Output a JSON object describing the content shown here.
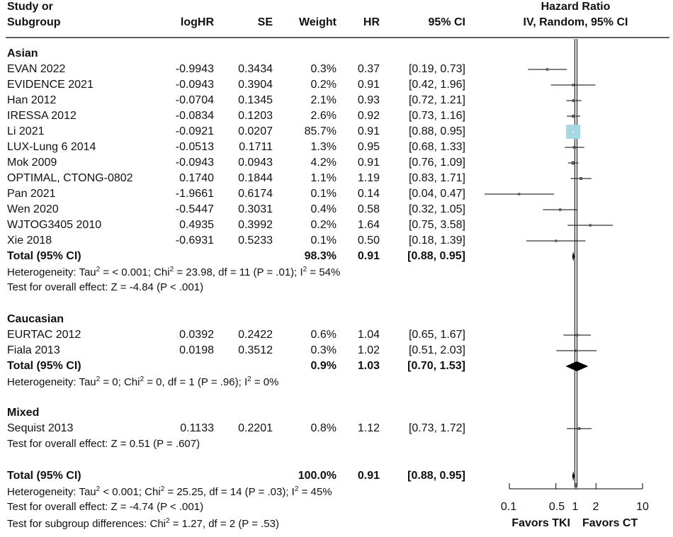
{
  "header": {
    "study_line1": "Study or",
    "study_line2": "Subgroup",
    "loghr": "logHR",
    "se": "SE",
    "weight": "Weight",
    "hr": "HR",
    "ci": "95% CI",
    "plot_line1": "Hazard Ratio",
    "plot_line2": "IV, Random, 95% CI"
  },
  "groups": [
    {
      "name": "Asian",
      "studies": [
        {
          "study": "EVAN 2022",
          "loghr": "-0.9943",
          "se": "0.3434",
          "weight": "0.3%",
          "hr": "0.37",
          "ci": "[0.19, 0.73]"
        },
        {
          "study": "EVIDENCE 2021",
          "loghr": "-0.0943",
          "se": "0.3904",
          "weight": "0.2%",
          "hr": "0.91",
          "ci": "[0.42, 1.96]"
        },
        {
          "study": "Han 2012",
          "loghr": "-0.0704",
          "se": "0.1345",
          "weight": "2.1%",
          "hr": "0.93",
          "ci": "[0.72, 1.21]"
        },
        {
          "study": "IRESSA 2012",
          "loghr": "-0.0834",
          "se": "0.1203",
          "weight": "2.6%",
          "hr": "0.92",
          "ci": "[0.73, 1.16]"
        },
        {
          "study": "Li 2021",
          "loghr": "-0.0921",
          "se": "0.0207",
          "weight": "85.7%",
          "hr": "0.91",
          "ci": "[0.88, 0.95]"
        },
        {
          "study": "LUX-Lung 6 2014",
          "loghr": "-0.0513",
          "se": "0.1711",
          "weight": "1.3%",
          "hr": "0.95",
          "ci": "[0.68, 1.33]"
        },
        {
          "study": "Mok 2009",
          "loghr": "-0.0943",
          "se": "0.0943",
          "weight": "4.2%",
          "hr": "0.91",
          "ci": "[0.76, 1.09]"
        },
        {
          "study": "OPTIMAL, CTONG-0802",
          "loghr": "0.1740",
          "se": "0.1844",
          "weight": "1.1%",
          "hr": "1.19",
          "ci": "[0.83, 1.71]"
        },
        {
          "study": "Pan 2021",
          "loghr": "-1.9661",
          "se": "0.6174",
          "weight": "0.1%",
          "hr": "0.14",
          "ci": "[0.04, 0.47]"
        },
        {
          "study": "Wen 2020",
          "loghr": "-0.5447",
          "se": "0.3031",
          "weight": "0.4%",
          "hr": "0.58",
          "ci": "[0.32, 1.05]"
        },
        {
          "study": "WJTOG3405 2010",
          "loghr": "0.4935",
          "se": "0.3992",
          "weight": "0.2%",
          "hr": "1.64",
          "ci": "[0.75, 3.58]"
        },
        {
          "study": "Xie 2018",
          "loghr": "-0.6931",
          "se": "0.5233",
          "weight": "0.1%",
          "hr": "0.50",
          "ci": "[0.18, 1.39]"
        }
      ],
      "total": {
        "label": "Total (95% CI)",
        "weight": "98.3%",
        "hr": "0.91",
        "ci": "[0.88, 0.95]"
      },
      "heterogeneity": {
        "prefix": "Heterogeneity: Tau",
        "mid1": " = < 0.001; Chi",
        "mid2": " = 23.98, df = 11 (P = .01); I",
        "end": " = 54%"
      },
      "overall_test": "Test for overall effect: Z = -4.84 (P < .001)"
    },
    {
      "name": "Caucasian",
      "studies": [
        {
          "study": "EURTAC 2012",
          "loghr": "0.0392",
          "se": "0.2422",
          "weight": "0.6%",
          "hr": "1.04",
          "ci": "[0.65, 1.67]"
        },
        {
          "study": "Fiala 2013",
          "loghr": "0.0198",
          "se": "0.3512",
          "weight": "0.3%",
          "hr": "1.02",
          "ci": "[0.51, 2.03]"
        }
      ],
      "total": {
        "label": "Total (95% CI)",
        "weight": "0.9%",
        "hr": "1.03",
        "ci": "[0.70, 1.53]"
      },
      "heterogeneity": {
        "prefix": "Heterogeneity: Tau",
        "mid1": " = 0; Chi",
        "mid2": " = 0, df = 1 (P = .96); I",
        "end": " = 0%"
      }
    },
    {
      "name": "Mixed",
      "studies": [
        {
          "study": "Sequist 2013",
          "loghr": "0.1133",
          "se": "0.2201",
          "weight": "0.8%",
          "hr": "1.12",
          "ci": "[0.73, 1.72]"
        }
      ],
      "overall_test": "Test for overall effect: Z = 0.51 (P = .607)"
    }
  ],
  "overall": {
    "total": {
      "label": "Total (95% CI)",
      "weight": "100.0%",
      "hr": "0.91",
      "ci": "[0.88, 0.95]"
    },
    "heterogeneity": {
      "prefix": "Heterogeneity: Tau",
      "mid1": " < 0.001; Chi",
      "mid2": " = 25.25, df = 14 (P = .03); I",
      "end": " = 45%"
    },
    "overall_test": "Test for overall effect: Z = -4.74 (P < .001)",
    "subgroup_test": {
      "prefix": "Test for subgroup differences: Chi",
      "end": " = 1.27, df = 2 (P = .53)"
    }
  },
  "sup2": "2",
  "axis": {
    "ticks": [
      0.1,
      0.5,
      1,
      2,
      10
    ],
    "tick_labels": [
      "0.1",
      "0.5",
      "1",
      "2",
      "10"
    ],
    "favors_left": "Favors TKI",
    "favors_right": "Favors CT"
  },
  "chart_data": {
    "type": "forest",
    "scale": "log",
    "xlim": [
      0.1,
      10
    ],
    "reference_line": 1,
    "colors": {
      "ink": "#000000",
      "big_box": "#a6d8e4"
    },
    "studies": [
      {
        "name": "EVAN 2022",
        "hr": 0.37,
        "lo": 0.19,
        "hi": 0.73,
        "weight": 0.3
      },
      {
        "name": "EVIDENCE 2021",
        "hr": 0.91,
        "lo": 0.42,
        "hi": 1.96,
        "weight": 0.2
      },
      {
        "name": "Han 2012",
        "hr": 0.93,
        "lo": 0.72,
        "hi": 1.21,
        "weight": 2.1
      },
      {
        "name": "IRESSA 2012",
        "hr": 0.92,
        "lo": 0.73,
        "hi": 1.16,
        "weight": 2.6
      },
      {
        "name": "Li 2021",
        "hr": 0.91,
        "lo": 0.88,
        "hi": 0.95,
        "weight": 85.7
      },
      {
        "name": "LUX-Lung 6 2014",
        "hr": 0.95,
        "lo": 0.68,
        "hi": 1.33,
        "weight": 1.3
      },
      {
        "name": "Mok 2009",
        "hr": 0.91,
        "lo": 0.76,
        "hi": 1.09,
        "weight": 4.2
      },
      {
        "name": "OPTIMAL, CTONG-0802",
        "hr": 1.19,
        "lo": 0.83,
        "hi": 1.71,
        "weight": 1.1
      },
      {
        "name": "Pan 2021",
        "hr": 0.14,
        "lo": 0.04,
        "hi": 0.47,
        "weight": 0.1
      },
      {
        "name": "Wen 2020",
        "hr": 0.58,
        "lo": 0.32,
        "hi": 1.05,
        "weight": 0.4
      },
      {
        "name": "WJTOG3405 2010",
        "hr": 1.64,
        "lo": 0.75,
        "hi": 3.58,
        "weight": 0.2
      },
      {
        "name": "Xie 2018",
        "hr": 0.5,
        "lo": 0.18,
        "hi": 1.39,
        "weight": 0.1
      },
      {
        "name": "EURTAC 2012",
        "hr": 1.04,
        "lo": 0.65,
        "hi": 1.67,
        "weight": 0.6
      },
      {
        "name": "Fiala 2013",
        "hr": 1.02,
        "lo": 0.51,
        "hi": 2.03,
        "weight": 0.3
      },
      {
        "name": "Sequist 2013",
        "hr": 1.12,
        "lo": 0.73,
        "hi": 1.72,
        "weight": 0.8
      }
    ],
    "totals": [
      {
        "name": "Asian",
        "hr": 0.91,
        "lo": 0.88,
        "hi": 0.95
      },
      {
        "name": "Caucasian",
        "hr": 1.03,
        "lo": 0.7,
        "hi": 1.53
      },
      {
        "name": "Overall",
        "hr": 0.91,
        "lo": 0.88,
        "hi": 0.95
      }
    ]
  }
}
